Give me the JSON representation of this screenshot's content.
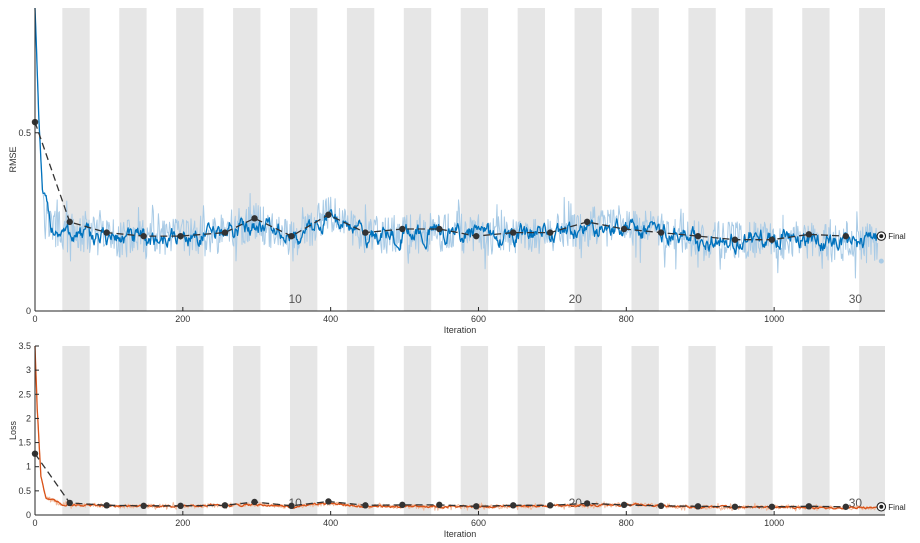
{
  "chart_data": [
    {
      "type": "line",
      "title": "",
      "xlabel": "Iteration",
      "ylabel": "RMSE",
      "xlim": [
        0,
        1150
      ],
      "ylim": [
        0,
        0.85
      ],
      "xticks": [
        0,
        200,
        400,
        600,
        800,
        1000
      ],
      "yticks": [
        0,
        0.5
      ],
      "grid": false,
      "epoch_bands": {
        "first_start": 37,
        "period": 77,
        "width": 37,
        "end": 1150
      },
      "epoch_labels": [
        {
          "x": 352,
          "label": "10"
        },
        {
          "x": 731,
          "label": "20"
        },
        {
          "x": 1110,
          "label": "30"
        }
      ],
      "series": [
        {
          "style": "raw",
          "color": "#a9cbe6",
          "anchors": {
            "x": [
              0,
              5,
              10,
              20,
              37,
              80,
              150,
              250,
              300,
              350,
              400,
              450,
              550,
              650,
              750,
              800,
              900,
              1000,
              1100,
              1140
            ],
            "y": [
              0.86,
              0.55,
              0.34,
              0.24,
              0.22,
              0.21,
              0.2,
              0.215,
              0.25,
              0.2,
              0.27,
              0.21,
              0.22,
              0.21,
              0.23,
              0.24,
              0.2,
              0.2,
              0.19,
              0.19
            ]
          },
          "noise": 0.055
        },
        {
          "style": "smoothed",
          "color": "#0072bd",
          "anchors": {
            "x": [
              0,
              5,
              10,
              20,
              37,
              80,
              150,
              250,
              300,
              350,
              400,
              450,
              550,
              650,
              750,
              800,
              900,
              1000,
              1100,
              1140
            ],
            "y": [
              0.86,
              0.55,
              0.34,
              0.24,
              0.22,
              0.21,
              0.2,
              0.215,
              0.25,
              0.2,
              0.27,
              0.21,
              0.22,
              0.21,
              0.23,
              0.24,
              0.2,
              0.2,
              0.19,
              0.19
            ]
          },
          "noise": 0.02
        },
        {
          "style": "validation",
          "color": "#333333",
          "x": [
            0,
            47,
            97,
            147,
            197,
            257,
            297,
            347,
            397,
            447,
            497,
            547,
            597,
            647,
            697,
            747,
            797,
            847,
            897,
            947,
            997,
            1047,
            1097
          ],
          "y": [
            0.53,
            0.25,
            0.22,
            0.21,
            0.21,
            0.22,
            0.26,
            0.21,
            0.27,
            0.22,
            0.23,
            0.23,
            0.21,
            0.22,
            0.22,
            0.25,
            0.23,
            0.22,
            0.21,
            0.2,
            0.2,
            0.215,
            0.21
          ]
        }
      ],
      "final_marker": {
        "x": 1145,
        "y": 0.21,
        "label": "Final"
      },
      "final_validation_dot": {
        "x": 1145,
        "y": 0.14
      }
    },
    {
      "type": "line",
      "title": "",
      "xlabel": "Iteration",
      "ylabel": "Loss",
      "xlim": [
        0,
        1150
      ],
      "ylim": [
        0,
        3.5
      ],
      "xticks": [
        0,
        200,
        400,
        600,
        800,
        1000
      ],
      "yticks": [
        0,
        0.5,
        1,
        1.5,
        2,
        2.5,
        3,
        3.5
      ],
      "grid": false,
      "epoch_bands": {
        "first_start": 37,
        "period": 77,
        "width": 37,
        "end": 1150
      },
      "epoch_labels": [
        {
          "x": 352,
          "label": "10"
        },
        {
          "x": 731,
          "label": "20"
        },
        {
          "x": 1110,
          "label": "30"
        }
      ],
      "series": [
        {
          "style": "raw",
          "color": "#f2b99a",
          "anchors": {
            "x": [
              0,
              3,
              8,
              15,
              37,
              100,
              200,
              300,
              350,
              400,
              450,
              600,
              750,
              800,
              900,
              1000,
              1140
            ],
            "y": [
              3.5,
              2.2,
              0.8,
              0.35,
              0.22,
              0.19,
              0.18,
              0.22,
              0.17,
              0.24,
              0.18,
              0.17,
              0.2,
              0.22,
              0.16,
              0.16,
              0.15
            ]
          },
          "noise": 0.045
        },
        {
          "style": "smoothed",
          "color": "#d95319",
          "anchors": {
            "x": [
              0,
              3,
              8,
              15,
              37,
              100,
              200,
              300,
              350,
              400,
              450,
              600,
              750,
              800,
              900,
              1000,
              1140
            ],
            "y": [
              3.5,
              2.2,
              0.8,
              0.35,
              0.22,
              0.19,
              0.18,
              0.22,
              0.17,
              0.24,
              0.18,
              0.17,
              0.2,
              0.22,
              0.16,
              0.16,
              0.15
            ]
          },
          "noise": 0.018
        },
        {
          "style": "validation",
          "color": "#333333",
          "x": [
            0,
            47,
            97,
            147,
            197,
            257,
            297,
            347,
            397,
            447,
            497,
            547,
            597,
            647,
            697,
            747,
            797,
            847,
            897,
            947,
            997,
            1047,
            1097
          ],
          "y": [
            1.27,
            0.25,
            0.2,
            0.19,
            0.19,
            0.2,
            0.27,
            0.19,
            0.28,
            0.2,
            0.21,
            0.21,
            0.18,
            0.2,
            0.2,
            0.24,
            0.21,
            0.19,
            0.18,
            0.17,
            0.17,
            0.18,
            0.17
          ]
        }
      ],
      "final_marker": {
        "x": 1145,
        "y": 0.17,
        "label": "Final"
      }
    }
  ]
}
